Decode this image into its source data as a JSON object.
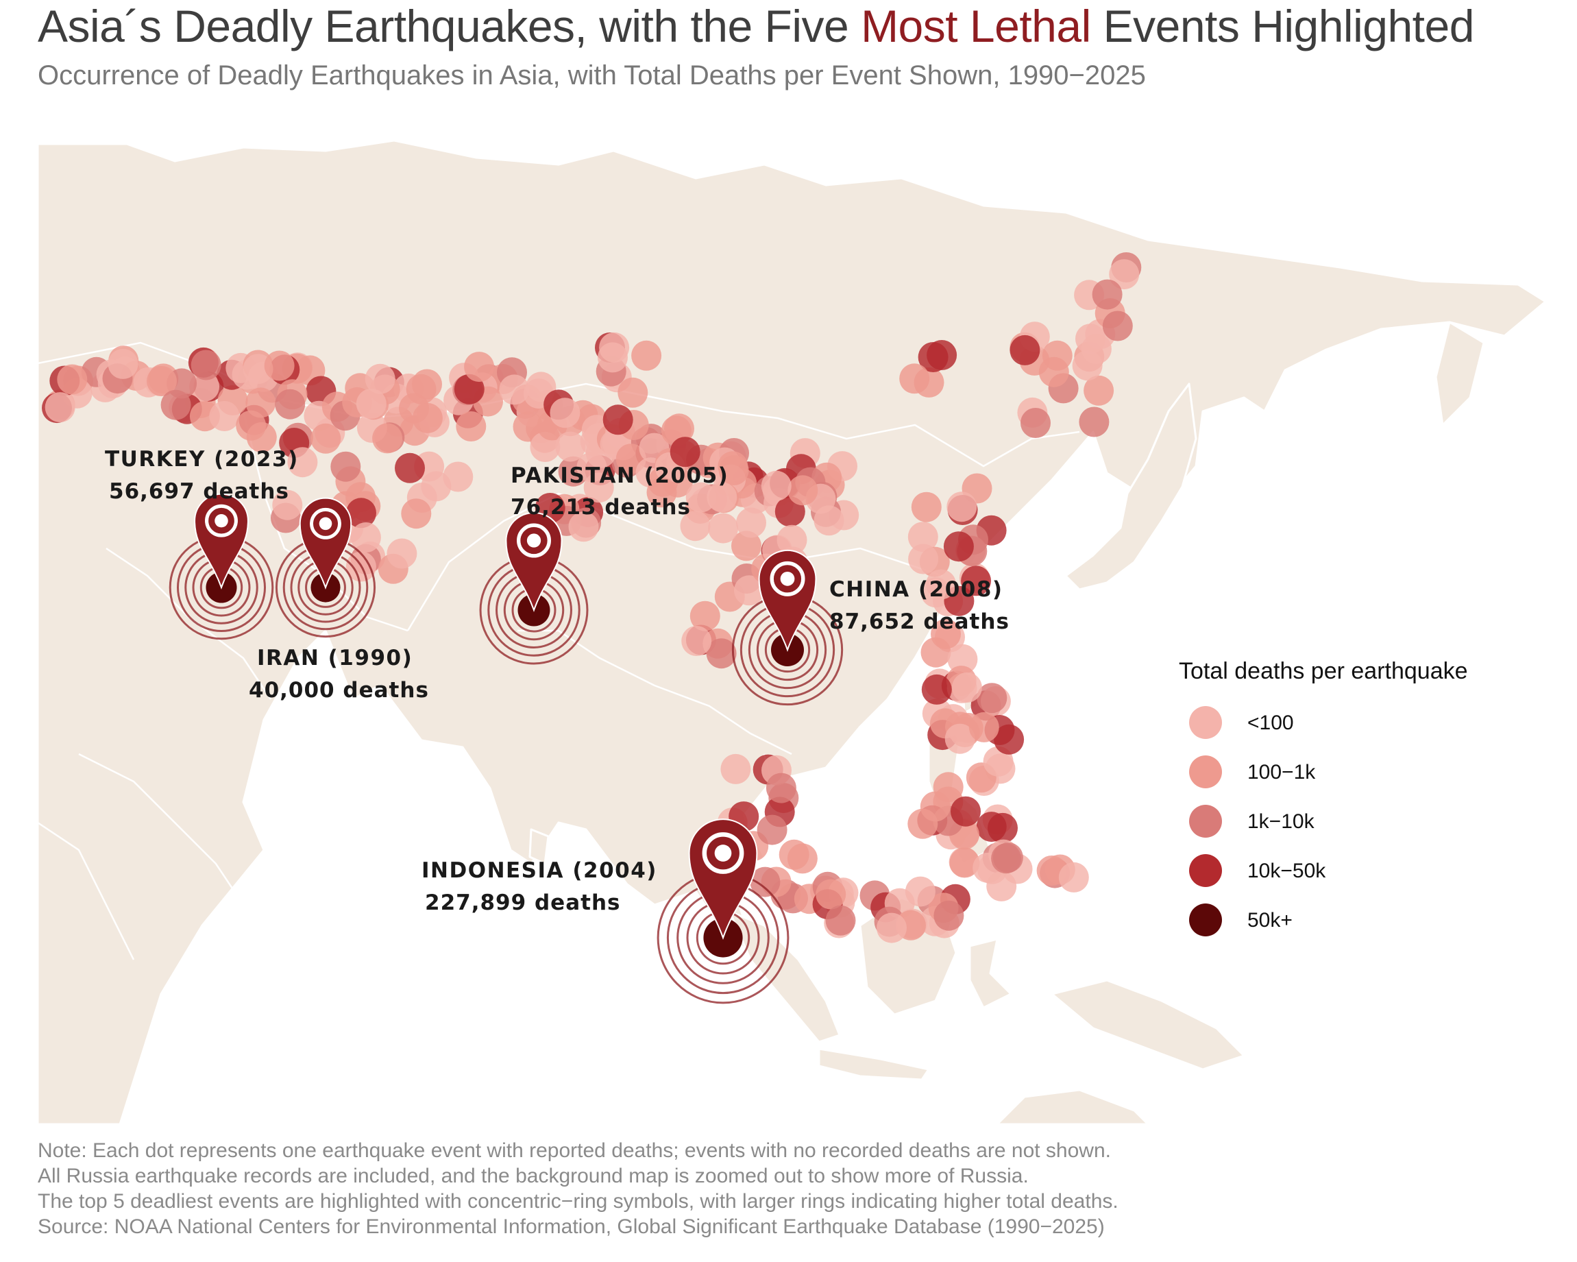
{
  "header": {
    "title_pre": "Asia´s Deadly Earthquakes, with the Five ",
    "title_highlight": "Most Lethal",
    "title_post": " Events Highlighted",
    "subtitle": "Occurrence of Deadly Earthquakes in Asia, with Total Deaths per Event Shown, 1990−2025"
  },
  "colors": {
    "land": "#f2e9df",
    "border": "#ffffff",
    "highlight": "#8f1d21",
    "lt100": "#f4b3ab",
    "c100_1k": "#ee9a8f",
    "c1k_10k": "#d97b78",
    "c10k_50k": "#b32a2e",
    "c50k_plus": "#5c0808"
  },
  "events": [
    {
      "country": "TURKEY",
      "year": "2023",
      "label": "TURKEY (2023)",
      "deaths_label": "56,697 deaths",
      "deaths": 56697
    },
    {
      "country": "IRAN",
      "year": "1990",
      "label": "IRAN (1990)",
      "deaths_label": "40,000 deaths",
      "deaths": 40000
    },
    {
      "country": "PAKISTAN",
      "year": "2005",
      "label": "PAKISTAN (2005)",
      "deaths_label": "76,213 deaths",
      "deaths": 76213
    },
    {
      "country": "CHINA",
      "year": "2008",
      "label": "CHINA (2008)",
      "deaths_label": "87,652 deaths",
      "deaths": 87652
    },
    {
      "country": "INDONESIA",
      "year": "2004",
      "label": "INDONESIA (2004)",
      "deaths_label": "227,899 deaths",
      "deaths": 227899
    }
  ],
  "legend": {
    "title": "Total deaths per earthquake",
    "items": [
      {
        "label": "<100",
        "color": "#f4b3ab"
      },
      {
        "label": "100−1k",
        "color": "#ee9a8f"
      },
      {
        "label": "1k−10k",
        "color": "#d97b78"
      },
      {
        "label": "10k−50k",
        "color": "#b32a2e"
      },
      {
        "label": "50k+",
        "color": "#5c0808"
      }
    ]
  },
  "notes": [
    "Note: Each dot represents one earthquake event with reported deaths; events with no recorded deaths are not shown.",
    "All Russia earthquake records are included, and the background map is zoomed out to show more of Russia.",
    "The top 5 deadliest events are highlighted with concentric−ring symbols, with larger rings indicating higher total deaths.",
    "Source: NOAA National Centers for Environmental Information, Global Significant Earthquake Database (1990−2025)"
  ]
}
